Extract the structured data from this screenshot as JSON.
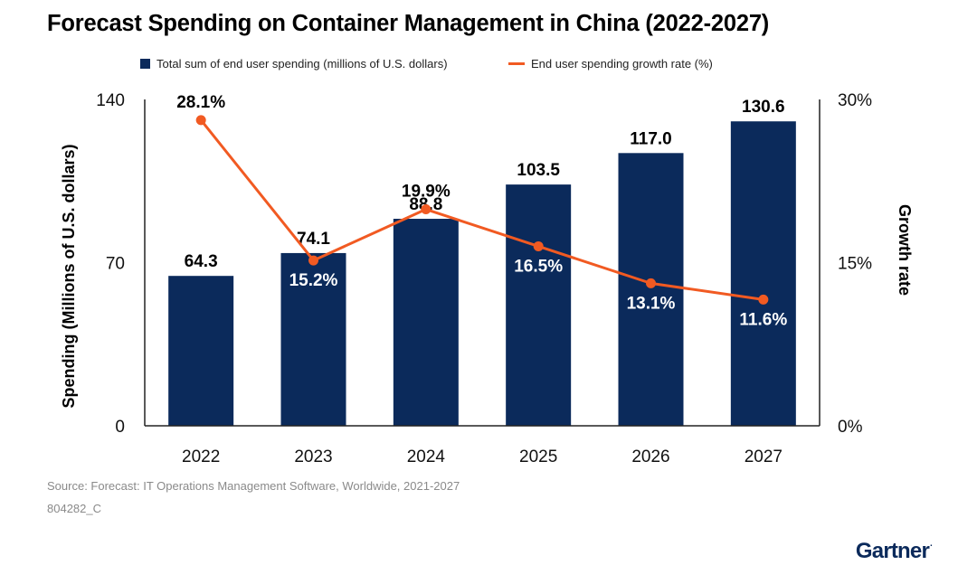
{
  "header": {
    "title": "Forecast Spending on Container Management in China (2022-2027)"
  },
  "colors": {
    "bar": "#0b2a5b",
    "line": "#f15a22",
    "axis": "#222222",
    "source_text": "#8a8a8a"
  },
  "chart_data": {
    "type": "bar",
    "title": "Forecast Spending on Container Management in China (2022-2027)",
    "categories": [
      "2022",
      "2023",
      "2024",
      "2025",
      "2026",
      "2027"
    ],
    "series": [
      {
        "name": "Total sum of end user spending (millions of U.S. dollars)",
        "type": "bar",
        "axis": "left",
        "values": [
          64.3,
          74.1,
          88.8,
          103.5,
          117.0,
          130.6
        ],
        "labels": [
          "64.3",
          "74.1",
          "88.8",
          "103.5",
          "117.0",
          "130.6"
        ]
      },
      {
        "name": "End user spending growth rate (%)",
        "type": "line",
        "axis": "right",
        "values": [
          28.1,
          15.2,
          19.9,
          16.5,
          13.1,
          11.6
        ],
        "labels": [
          "28.1%",
          "15.2%",
          "19.9%",
          "16.5%",
          "13.1%",
          "11.6%"
        ]
      }
    ],
    "ylabel": "Spending (Millions of U.S. dollars)",
    "y2label": "Growth rate",
    "ylim": [
      0,
      140
    ],
    "y2lim": [
      0,
      30
    ],
    "yticks": [
      "0",
      "70",
      "140"
    ],
    "y2ticks": [
      "0%",
      "15%",
      "30%"
    ],
    "legend_position": "top-center",
    "grid": false
  },
  "footer": {
    "source": "Source: Forecast: IT Operations Management Software, Worldwide, 2021-2027",
    "doc_id": "804282_C",
    "logo_text": "Gartner"
  }
}
